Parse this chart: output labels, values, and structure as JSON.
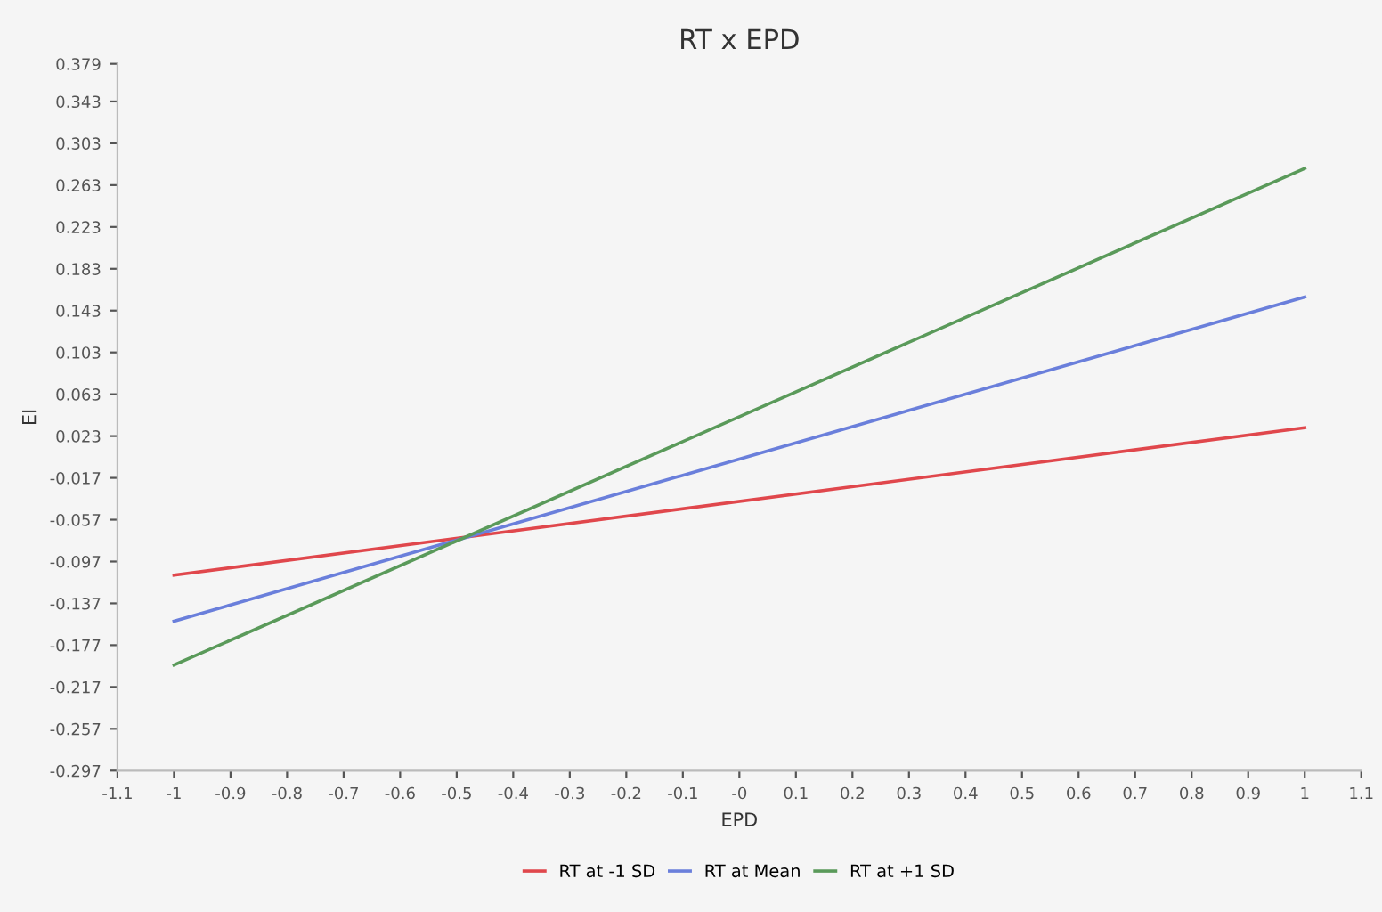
{
  "chart_data": {
    "type": "line",
    "title": "RT x EPD",
    "xlabel": "EPD",
    "ylabel": "EI",
    "x": [
      -1,
      1
    ],
    "series": [
      {
        "name": "RT at -1 SD",
        "color": "#e0474c",
        "values": [
          -0.11,
          0.031
        ]
      },
      {
        "name": "RT at Mean",
        "color": "#6a7fdb",
        "values": [
          -0.154,
          0.156
        ]
      },
      {
        "name": "RT at +1 SD",
        "color": "#5a9a5a",
        "values": [
          -0.196,
          0.279
        ]
      }
    ],
    "xlim": [
      -1.1,
      1.1
    ],
    "xticks": [
      -1.1,
      -1,
      -0.9,
      -0.8,
      -0.7,
      -0.6,
      -0.5,
      -0.4,
      -0.3,
      -0.2,
      -0.1,
      {
        "value": 0,
        "label": "-0"
      },
      0.1,
      0.2,
      0.3,
      0.4,
      0.5,
      0.6,
      0.7,
      0.8,
      0.9,
      1,
      1.1
    ],
    "ylim": [
      -0.297,
      0.379
    ],
    "yticks": [
      -0.297,
      -0.257,
      -0.217,
      -0.177,
      -0.137,
      -0.097,
      -0.057,
      -0.017,
      0.023,
      0.063,
      0.103,
      0.143,
      0.183,
      0.223,
      0.263,
      0.303,
      0.343,
      0.379
    ],
    "grid": false,
    "legend": "bottom",
    "marker": "none",
    "line_style": "solid"
  }
}
